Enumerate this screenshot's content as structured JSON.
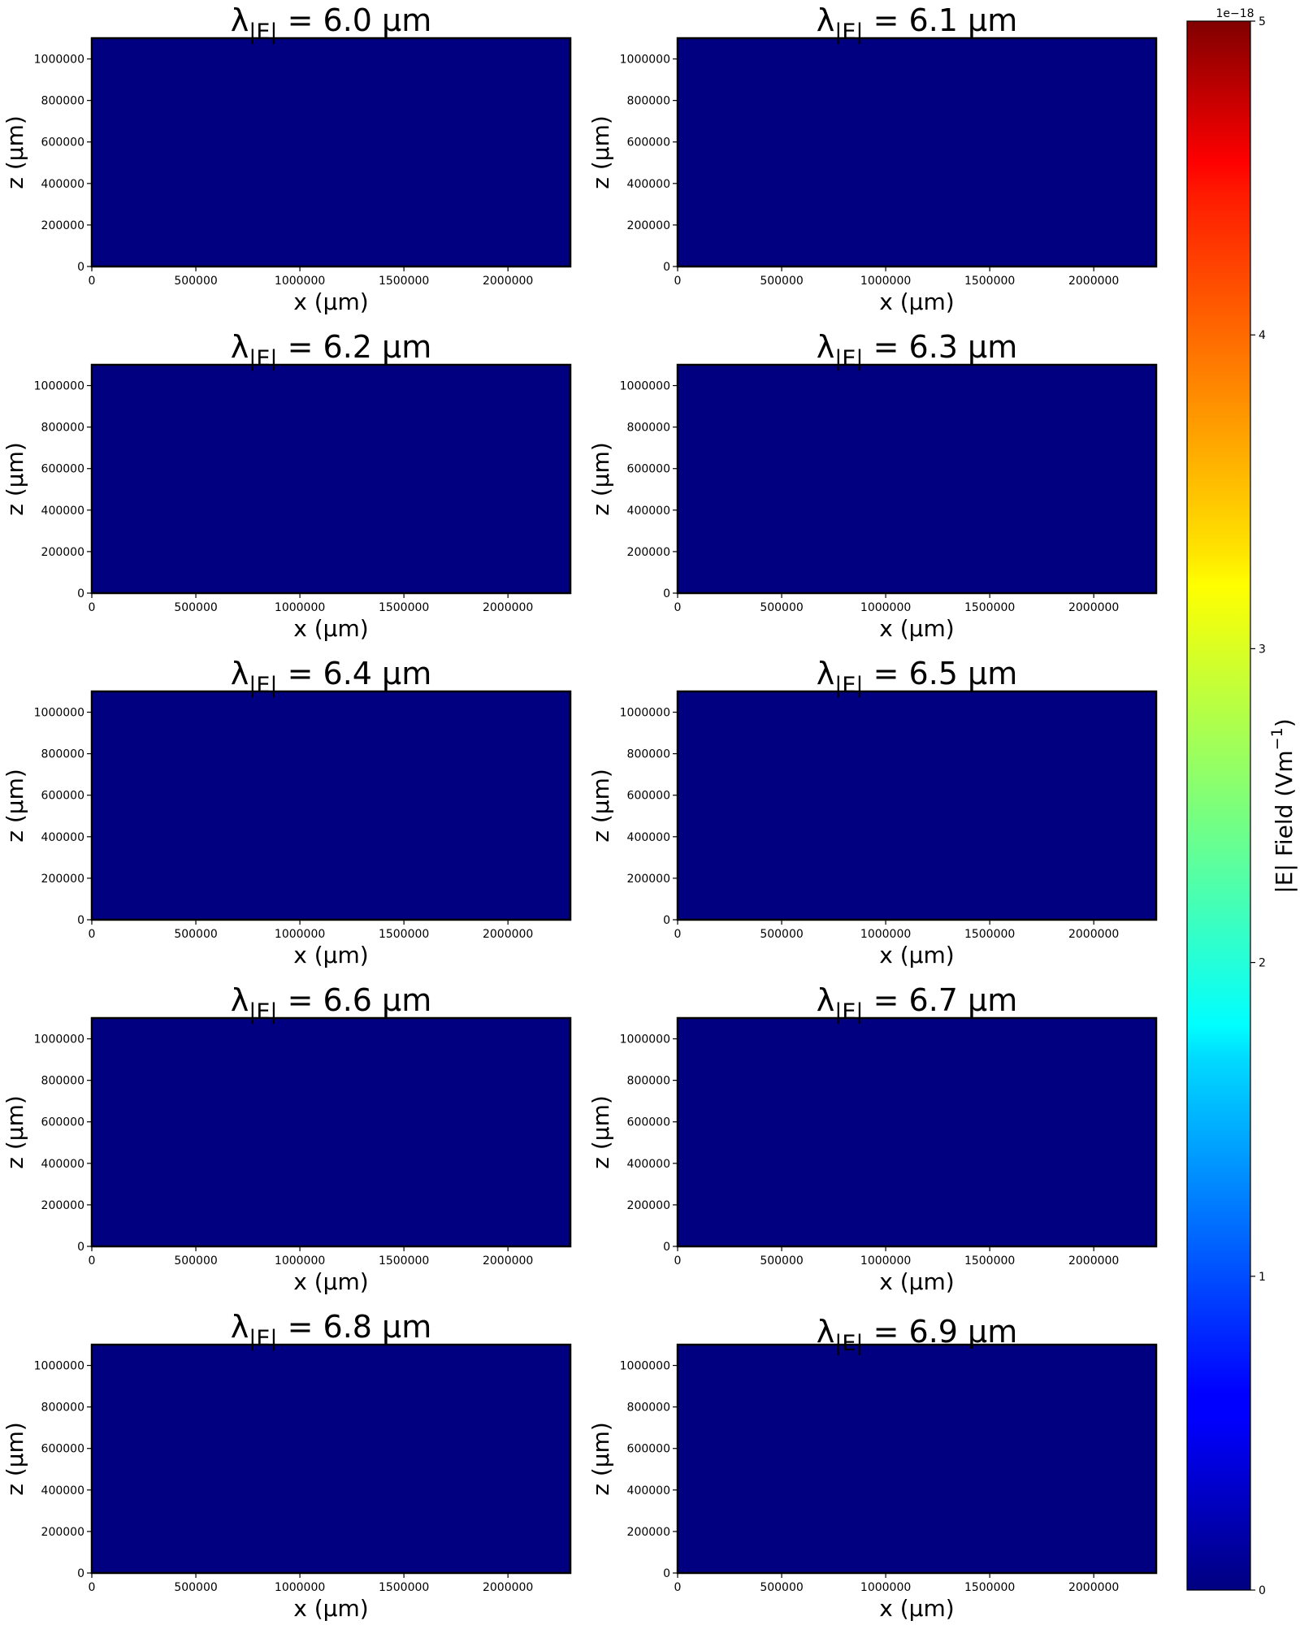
{
  "colors": {
    "field_fill": "#000080",
    "colormap": "jet",
    "background": "#ffffff"
  },
  "chart_data": {
    "type": "heatmap",
    "colormap": "jet",
    "shared_colorbar": {
      "label_main": "|E|   Field (Vm",
      "label_sup": "−1",
      "label_close": ")",
      "offset_text": "1e−18",
      "range": [
        0,
        5
      ],
      "ticks": [
        "0",
        "1",
        "2",
        "3",
        "4",
        "5"
      ]
    },
    "panels": [
      {
        "title_prefix": "λ",
        "title_sub": "|E|",
        "title_value": " = 6.0 μm",
        "wavelength_um": 6.0,
        "field_value": 0
      },
      {
        "title_prefix": "λ",
        "title_sub": "|E|",
        "title_value": " = 6.1 μm",
        "wavelength_um": 6.1,
        "field_value": 0
      },
      {
        "title_prefix": "λ",
        "title_sub": "|E|",
        "title_value": " = 6.2 μm",
        "wavelength_um": 6.2,
        "field_value": 0
      },
      {
        "title_prefix": "λ",
        "title_sub": "|E|",
        "title_value": " = 6.3 μm",
        "wavelength_um": 6.3,
        "field_value": 0
      },
      {
        "title_prefix": "λ",
        "title_sub": "|E|",
        "title_value": " = 6.4 μm",
        "wavelength_um": 6.4,
        "field_value": 0
      },
      {
        "title_prefix": "λ",
        "title_sub": "|E|",
        "title_value": " = 6.5 μm",
        "wavelength_um": 6.5,
        "field_value": 0
      },
      {
        "title_prefix": "λ",
        "title_sub": "|E|",
        "title_value": " = 6.6 μm",
        "wavelength_um": 6.6,
        "field_value": 0
      },
      {
        "title_prefix": "λ",
        "title_sub": "|E|",
        "title_value": " = 6.7 μm",
        "wavelength_um": 6.7,
        "field_value": 0
      },
      {
        "title_prefix": "λ",
        "title_sub": "|E|",
        "title_value": " = 6.8 μm",
        "wavelength_um": 6.8,
        "field_value": 0
      },
      {
        "title_prefix": "λ",
        "title_sub": "|E|",
        "title_value": " = 6.9 μm",
        "wavelength_um": 6.9,
        "field_value": 0
      }
    ],
    "xlabel": "x (μm)",
    "ylabel": "z (μm)",
    "xlim": [
      0,
      2300000
    ],
    "ylim": [
      0,
      1100000
    ],
    "xticks": [
      0,
      500000,
      1000000,
      1500000,
      2000000
    ],
    "xtick_labels": [
      "0",
      "500000",
      "1000000",
      "1500000",
      "2000000"
    ],
    "yticks": [
      0,
      200000,
      400000,
      600000,
      800000,
      1000000
    ],
    "ytick_labels": [
      "0",
      "200000",
      "400000",
      "600000",
      "800000",
      "1000000"
    ],
    "grid": false
  }
}
